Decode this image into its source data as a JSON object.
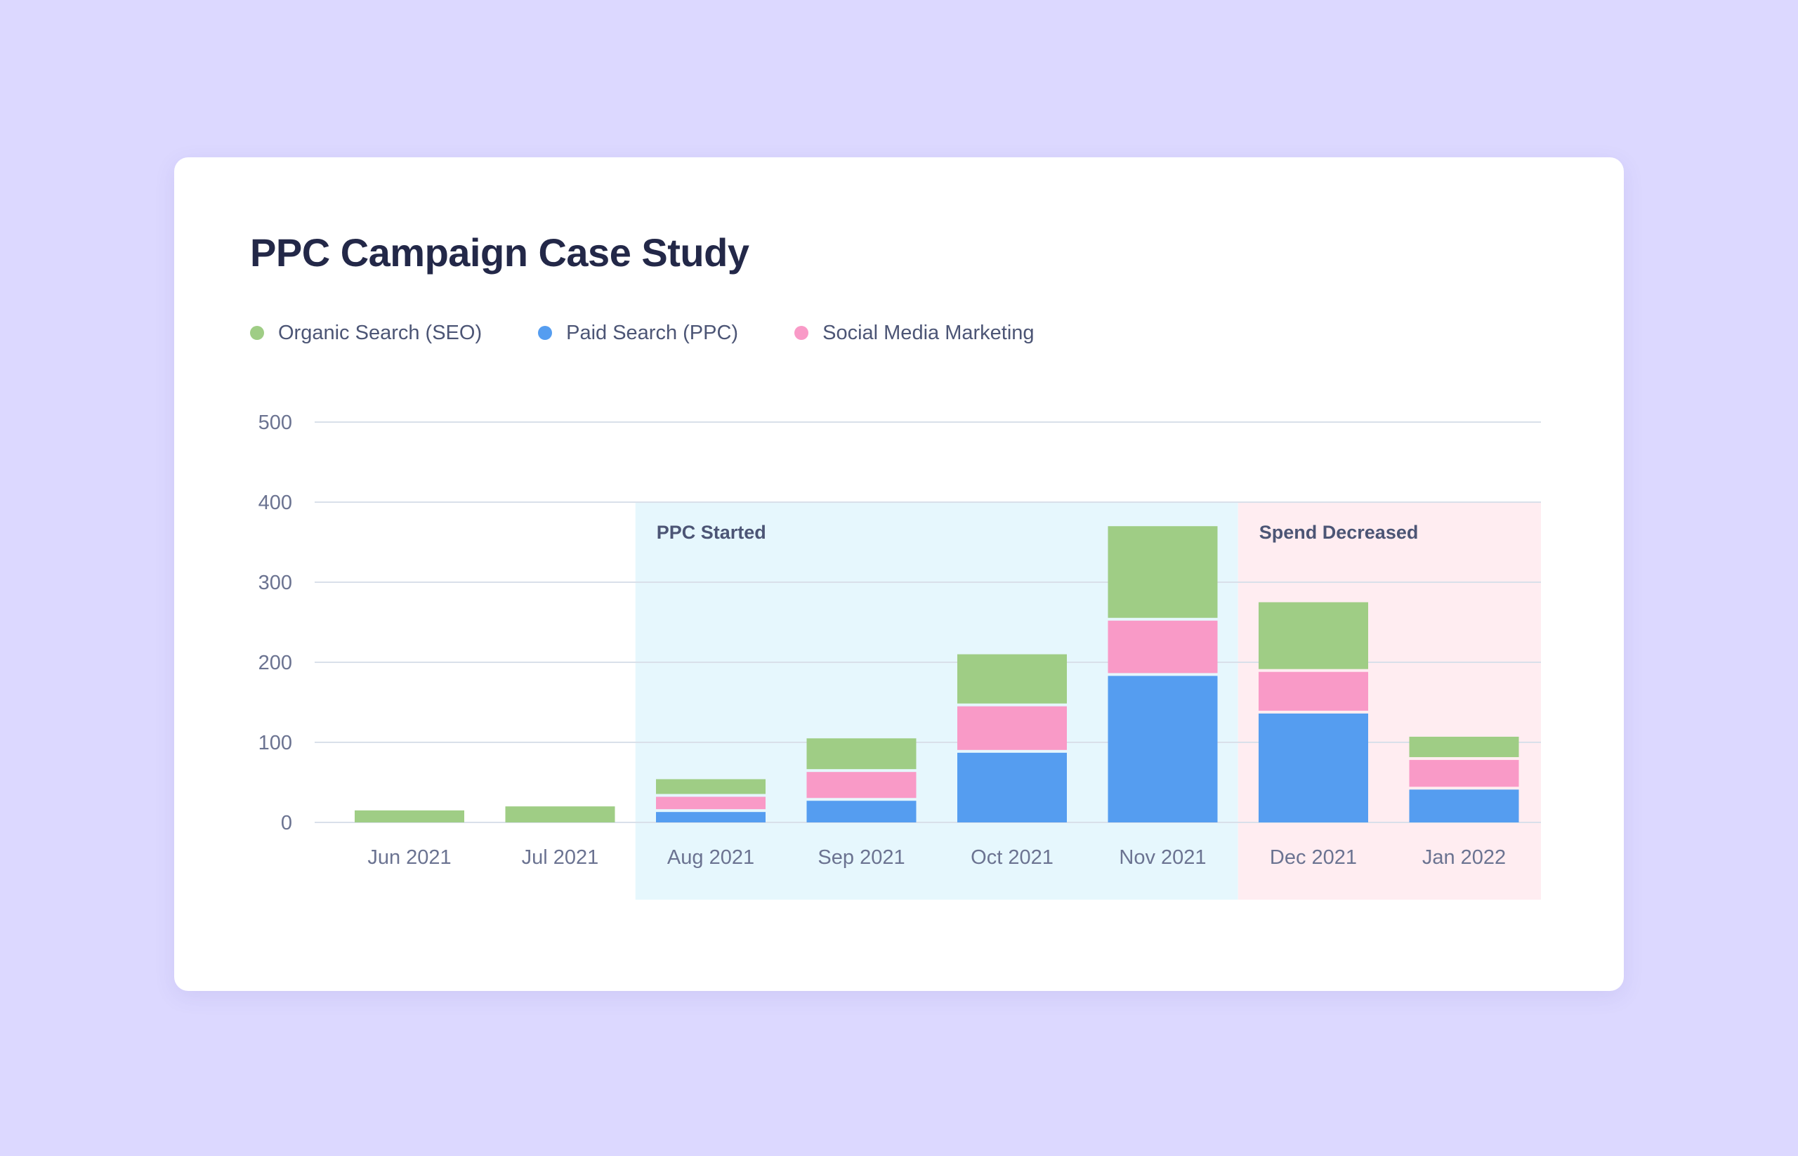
{
  "card": {
    "title": "PPC Campaign Case Study"
  },
  "chart_data": {
    "type": "bar",
    "stacked": true,
    "title": "PPC Campaign Case Study",
    "xlabel": "",
    "ylabel": "",
    "ylim": [
      0,
      500
    ],
    "yticks": [
      0,
      100,
      200,
      300,
      400,
      500
    ],
    "grid": true,
    "legend_position": "top-left",
    "categories": [
      "Jun 2021",
      "Jul 2021",
      "Aug 2021",
      "Sep 2021",
      "Oct 2021",
      "Nov 2021",
      "Dec 2021",
      "Jan 2022"
    ],
    "series": [
      {
        "name": "Paid Search (PPC)",
        "color": "#559df0",
        "values": [
          0,
          0,
          13,
          27,
          87,
          183,
          136,
          41
        ]
      },
      {
        "name": "Social Media Marketing",
        "color": "#f99ac7",
        "values": [
          0,
          0,
          19,
          36,
          58,
          69,
          52,
          37
        ]
      },
      {
        "name": "Organic Search (SEO)",
        "color": "#9fcd85",
        "values": [
          15,
          20,
          22,
          42,
          65,
          118,
          87,
          29
        ]
      }
    ],
    "legend_order": [
      "Organic Search (SEO)",
      "Paid Search (PPC)",
      "Social Media Marketing"
    ],
    "annotations": [
      {
        "label": "PPC Started",
        "from": "Aug 2021",
        "to": "Nov 2021",
        "color": "#e6f7fd",
        "y_top": 400
      },
      {
        "label": "Spend Decreased",
        "from": "Dec 2021",
        "to": "Jan 2022",
        "color": "#ffedf1",
        "y_top": 400
      }
    ]
  }
}
